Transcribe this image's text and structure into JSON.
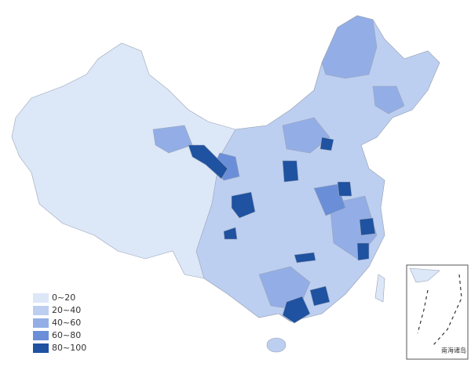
{
  "legend": {
    "items": [
      {
        "label": "0~20",
        "color": "#dce7f8"
      },
      {
        "label": "20~40",
        "color": "#bccff1"
      },
      {
        "label": "40~60",
        "color": "#93aee6"
      },
      {
        "label": "60~80",
        "color": "#6a8ed8"
      },
      {
        "label": "80~100",
        "color": "#1f52a0"
      }
    ]
  },
  "inset": {
    "label": "南海诸岛"
  }
}
